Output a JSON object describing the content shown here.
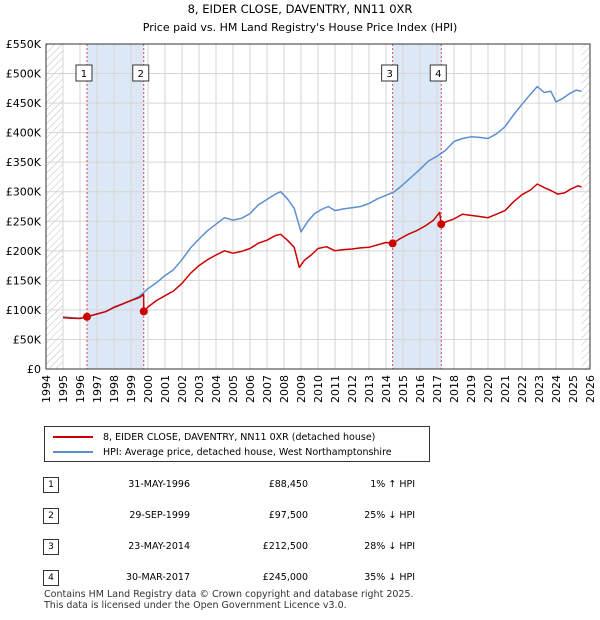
{
  "chart_data": {
    "type": "line",
    "title": "8, EIDER CLOSE, DAVENTRY, NN11 0XR",
    "subtitle": "Price paid vs. HM Land Registry's House Price Index (HPI)",
    "xlim": [
      1994,
      2026
    ],
    "ylim": [
      0,
      550000
    ],
    "x_ticks": [
      "1994",
      "1995",
      "1996",
      "1997",
      "1998",
      "1999",
      "2000",
      "2001",
      "2002",
      "2003",
      "2004",
      "2005",
      "2006",
      "2007",
      "2008",
      "2009",
      "2010",
      "2011",
      "2012",
      "2013",
      "2014",
      "2015",
      "2016",
      "2017",
      "2018",
      "2019",
      "2020",
      "2021",
      "2022",
      "2023",
      "2024",
      "2025",
      "2026"
    ],
    "y_ticks": [
      {
        "value": 0,
        "label": "£0"
      },
      {
        "value": 50000,
        "label": "£50K"
      },
      {
        "value": 100000,
        "label": "£100K"
      },
      {
        "value": 150000,
        "label": "£150K"
      },
      {
        "value": 200000,
        "label": "£200K"
      },
      {
        "value": 250000,
        "label": "£250K"
      },
      {
        "value": 300000,
        "label": "£300K"
      },
      {
        "value": 350000,
        "label": "£350K"
      },
      {
        "value": 400000,
        "label": "£400K"
      },
      {
        "value": 450000,
        "label": "£450K"
      },
      {
        "value": 500000,
        "label": "£500K"
      },
      {
        "value": 550000,
        "label": "£550K"
      }
    ],
    "grid": true,
    "series": [
      {
        "name": "8, EIDER CLOSE, DAVENTRY, NN11 0XR (detached house)",
        "color": "#cc0000",
        "points": [
          [
            1995.0,
            87000
          ],
          [
            1995.5,
            86000
          ],
          [
            1996.0,
            85500
          ],
          [
            1996.41,
            88450
          ],
          [
            1997.0,
            93000
          ],
          [
            1997.5,
            97000
          ],
          [
            1998.0,
            104000
          ],
          [
            1998.5,
            110000
          ],
          [
            1999.0,
            116000
          ],
          [
            1999.5,
            121000
          ],
          [
            1999.74,
            126000
          ],
          [
            1999.75,
            97500
          ],
          [
            2000.0,
            105000
          ],
          [
            2000.5,
            116000
          ],
          [
            2001.0,
            124000
          ],
          [
            2001.5,
            132000
          ],
          [
            2002.0,
            145000
          ],
          [
            2002.5,
            162000
          ],
          [
            2003.0,
            175000
          ],
          [
            2003.5,
            185000
          ],
          [
            2004.0,
            193000
          ],
          [
            2004.5,
            200000
          ],
          [
            2005.0,
            196000
          ],
          [
            2005.5,
            199000
          ],
          [
            2006.0,
            204000
          ],
          [
            2006.5,
            213000
          ],
          [
            2007.0,
            218000
          ],
          [
            2007.5,
            226000
          ],
          [
            2007.8,
            228000
          ],
          [
            2008.2,
            218000
          ],
          [
            2008.6,
            206000
          ],
          [
            2008.9,
            172000
          ],
          [
            2009.2,
            184000
          ],
          [
            2009.6,
            193000
          ],
          [
            2010.0,
            204000
          ],
          [
            2010.5,
            207000
          ],
          [
            2011.0,
            200000
          ],
          [
            2011.5,
            202000
          ],
          [
            2012.0,
            203000
          ],
          [
            2012.5,
            205000
          ],
          [
            2013.0,
            206000
          ],
          [
            2013.5,
            210000
          ],
          [
            2014.0,
            214000
          ],
          [
            2014.4,
            212500
          ],
          [
            2014.8,
            220000
          ],
          [
            2015.3,
            228000
          ],
          [
            2015.8,
            234000
          ],
          [
            2016.3,
            242000
          ],
          [
            2016.8,
            252000
          ],
          [
            2017.15,
            265000
          ],
          [
            2017.25,
            245000
          ],
          [
            2017.6,
            250000
          ],
          [
            2018.0,
            254000
          ],
          [
            2018.5,
            262000
          ],
          [
            2019.0,
            260000
          ],
          [
            2019.5,
            258000
          ],
          [
            2020.0,
            256000
          ],
          [
            2020.5,
            262000
          ],
          [
            2021.0,
            268000
          ],
          [
            2021.5,
            283000
          ],
          [
            2022.0,
            295000
          ],
          [
            2022.5,
            303000
          ],
          [
            2022.9,
            313000
          ],
          [
            2023.3,
            307000
          ],
          [
            2023.7,
            302000
          ],
          [
            2024.1,
            296000
          ],
          [
            2024.5,
            298000
          ],
          [
            2024.9,
            305000
          ],
          [
            2025.3,
            310000
          ],
          [
            2025.5,
            308000
          ]
        ]
      },
      {
        "name": "HPI: Average price, detached house, West Northamptonshire",
        "color": "#5b8fd0",
        "points": [
          [
            1995.0,
            88000
          ],
          [
            1995.5,
            87000
          ],
          [
            1996.0,
            86000
          ],
          [
            1996.5,
            89000
          ],
          [
            1997.0,
            93000
          ],
          [
            1997.5,
            97000
          ],
          [
            1998.0,
            105000
          ],
          [
            1998.5,
            110000
          ],
          [
            1999.0,
            116000
          ],
          [
            1999.5,
            123000
          ],
          [
            2000.0,
            136000
          ],
          [
            2000.5,
            146000
          ],
          [
            2001.0,
            158000
          ],
          [
            2001.5,
            168000
          ],
          [
            2002.0,
            185000
          ],
          [
            2002.5,
            205000
          ],
          [
            2003.0,
            220000
          ],
          [
            2003.5,
            234000
          ],
          [
            2004.0,
            245000
          ],
          [
            2004.5,
            256000
          ],
          [
            2005.0,
            252000
          ],
          [
            2005.5,
            255000
          ],
          [
            2006.0,
            263000
          ],
          [
            2006.5,
            278000
          ],
          [
            2007.0,
            287000
          ],
          [
            2007.5,
            296000
          ],
          [
            2007.8,
            300000
          ],
          [
            2008.2,
            288000
          ],
          [
            2008.6,
            272000
          ],
          [
            2009.0,
            232000
          ],
          [
            2009.4,
            250000
          ],
          [
            2009.8,
            263000
          ],
          [
            2010.2,
            270000
          ],
          [
            2010.6,
            275000
          ],
          [
            2011.0,
            268000
          ],
          [
            2011.5,
            271000
          ],
          [
            2012.0,
            273000
          ],
          [
            2012.5,
            275000
          ],
          [
            2013.0,
            280000
          ],
          [
            2013.5,
            288000
          ],
          [
            2014.0,
            294000
          ],
          [
            2014.5,
            300000
          ],
          [
            2015.0,
            312000
          ],
          [
            2015.5,
            325000
          ],
          [
            2016.0,
            338000
          ],
          [
            2016.5,
            352000
          ],
          [
            2017.0,
            360000
          ],
          [
            2017.5,
            370000
          ],
          [
            2018.0,
            385000
          ],
          [
            2018.5,
            390000
          ],
          [
            2019.0,
            393000
          ],
          [
            2019.5,
            392000
          ],
          [
            2020.0,
            390000
          ],
          [
            2020.5,
            398000
          ],
          [
            2021.0,
            410000
          ],
          [
            2021.5,
            430000
          ],
          [
            2022.0,
            448000
          ],
          [
            2022.5,
            465000
          ],
          [
            2022.9,
            478000
          ],
          [
            2023.3,
            468000
          ],
          [
            2023.7,
            470000
          ],
          [
            2024.0,
            452000
          ],
          [
            2024.4,
            458000
          ],
          [
            2024.8,
            466000
          ],
          [
            2025.2,
            472000
          ],
          [
            2025.5,
            470000
          ]
        ]
      }
    ],
    "sales": [
      {
        "label": "1",
        "x": 1996.41,
        "price": 88450,
        "date": "31-MAY-1996",
        "price_label": "£88,450",
        "hpi_label": "1% ↑ HPI"
      },
      {
        "label": "2",
        "x": 1999.75,
        "price": 97500,
        "date": "29-SEP-1999",
        "price_label": "£97,500",
        "hpi_label": "25% ↓ HPI"
      },
      {
        "label": "3",
        "x": 2014.39,
        "price": 212500,
        "date": "23-MAY-2014",
        "price_label": "£212,500",
        "hpi_label": "28% ↓ HPI"
      },
      {
        "label": "4",
        "x": 2017.25,
        "price": 245000,
        "date": "30-MAR-2017",
        "price_label": "£245,000",
        "hpi_label": "35% ↓ HPI"
      }
    ],
    "shaded_ranges": [
      [
        1996.41,
        1999.75
      ],
      [
        2014.39,
        2017.25
      ]
    ],
    "hatched_ranges": [
      [
        1994,
        1995
      ],
      [
        2025.5,
        2026
      ]
    ],
    "colors": {
      "band": "#dde8f7",
      "grid": "#d6d6d6",
      "hatch": "#b9b9b9",
      "vline": "#cc0000"
    }
  },
  "legend": {
    "property_label": "8, EIDER CLOSE, DAVENTRY, NN11 0XR (detached house)",
    "hpi_label": "HPI: Average price, detached house, West Northamptonshire"
  },
  "footer": {
    "line1": "Contains HM Land Registry data © Crown copyright and database right 2025.",
    "line2": "This data is licensed under the Open Government Licence v3.0."
  }
}
